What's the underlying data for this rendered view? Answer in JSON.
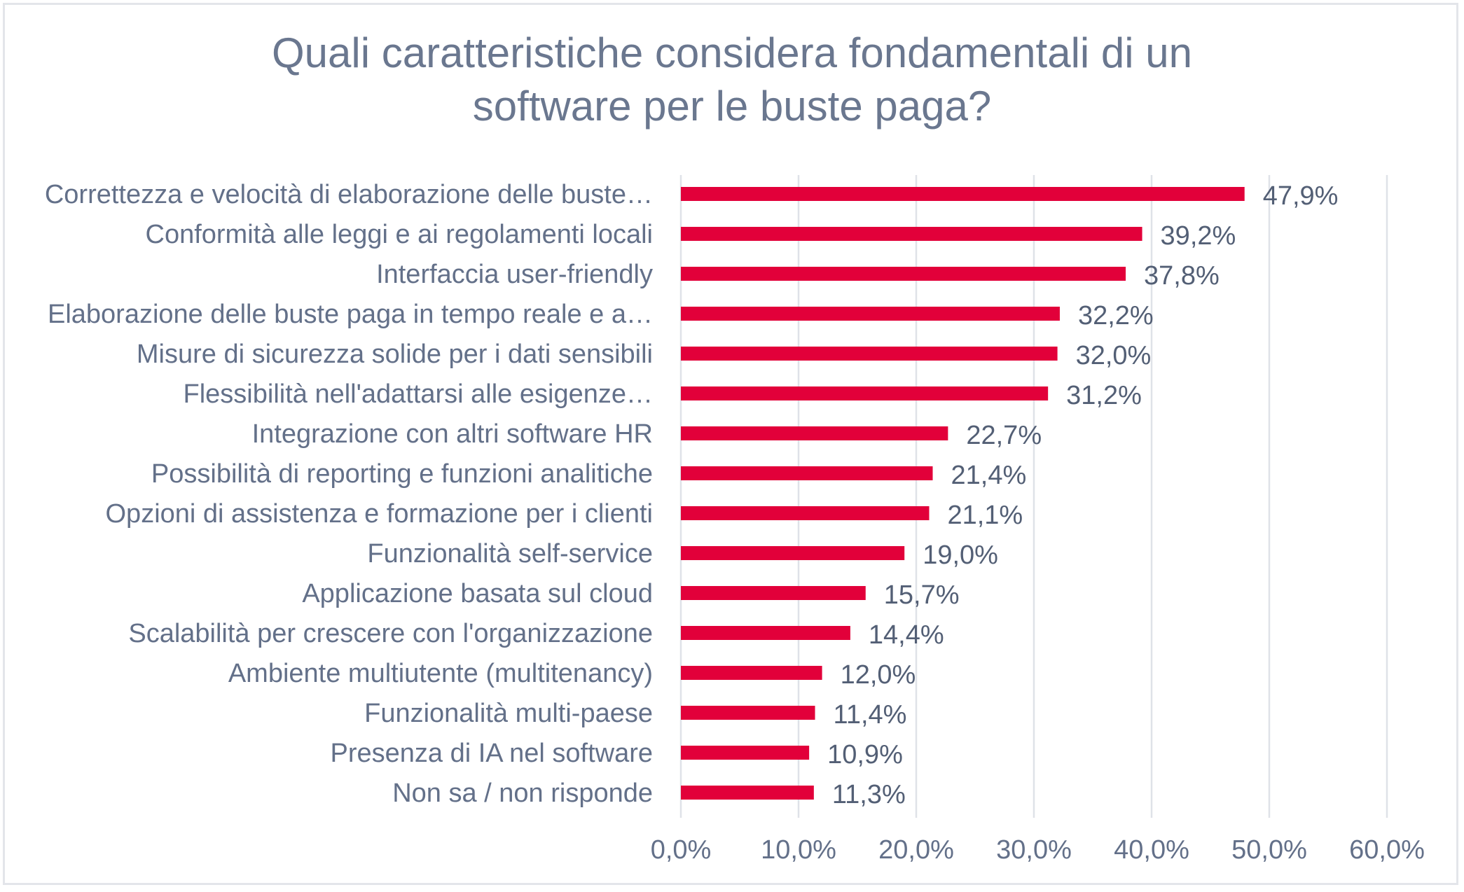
{
  "chart_data": {
    "type": "bar",
    "orientation": "horizontal",
    "title": "Quali caratteristiche considera fondamentali di un software per le buste paga?",
    "title_lines": [
      "Quali caratteristiche considera fondamentali di un",
      "software per le buste paga?"
    ],
    "xlabel": "",
    "ylabel": "",
    "xlim": [
      0,
      60
    ],
    "x_ticks": [
      0,
      10,
      20,
      30,
      40,
      50,
      60
    ],
    "x_tick_labels": [
      "0,0%",
      "10,0%",
      "20,0%",
      "30,0%",
      "40,0%",
      "50,0%",
      "60,0%"
    ],
    "grid": "vertical",
    "legend": "none",
    "bar_color": "#e2003a",
    "categories": [
      "Correttezza e velocità di elaborazione delle buste…",
      "Conformità alle leggi e ai regolamenti locali",
      "Interfaccia user-friendly",
      "Elaborazione delle buste paga in tempo reale e a…",
      "Misure di sicurezza solide per i dati sensibili",
      "Flessibilità nell'adattarsi alle esigenze…",
      "Integrazione con altri software HR",
      "Possibilità di reporting e funzioni analitiche",
      "Opzioni di assistenza e formazione per i clienti",
      "Funzionalità self-service",
      "Applicazione basata sul cloud",
      "Scalabilità per crescere con l'organizzazione",
      "Ambiente multiutente (multitenancy)",
      "Funzionalità multi-paese",
      "Presenza di IA nel software",
      "Non sa / non risponde"
    ],
    "values": [
      47.9,
      39.2,
      37.8,
      32.2,
      32.0,
      31.2,
      22.7,
      21.4,
      21.1,
      19.0,
      15.7,
      14.4,
      12.0,
      11.4,
      10.9,
      11.3
    ],
    "value_labels": [
      "47,9%",
      "39,2%",
      "37,8%",
      "32,2%",
      "32,0%",
      "31,2%",
      "22,7%",
      "21,4%",
      "21,1%",
      "19,0%",
      "15,7%",
      "14,4%",
      "12,0%",
      "11,4%",
      "10,9%",
      "11,3%"
    ]
  }
}
